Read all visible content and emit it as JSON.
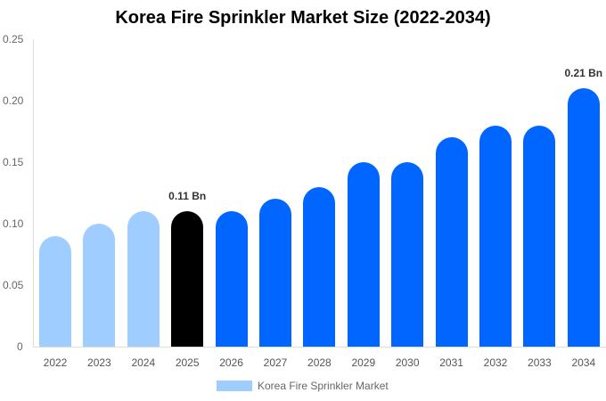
{
  "chart_data": {
    "type": "bar",
    "title": "Korea Fire Sprinkler Market Size (2022-2034)",
    "xlabel": "",
    "ylabel": "",
    "ylim": [
      0,
      0.25
    ],
    "yticks": [
      "0",
      "0.05",
      "0.10",
      "0.15",
      "0.20",
      "0.25"
    ],
    "categories": [
      "2022",
      "2023",
      "2024",
      "2025",
      "2026",
      "2027",
      "2028",
      "2029",
      "2030",
      "2031",
      "2032",
      "2033",
      "2034"
    ],
    "series": [
      {
        "name": "Korea Fire Sprinkler Market",
        "values": [
          0.09,
          0.1,
          0.11,
          0.11,
          0.11,
          0.12,
          0.13,
          0.15,
          0.15,
          0.17,
          0.18,
          0.18,
          0.21
        ]
      }
    ],
    "bar_colors": [
      "#9fcdff",
      "#9fcdff",
      "#9fcdff",
      "#000000",
      "#0066ff",
      "#0066ff",
      "#0066ff",
      "#0066ff",
      "#0066ff",
      "#0066ff",
      "#0066ff",
      "#0066ff",
      "#0066ff"
    ],
    "annotations": [
      {
        "category": "2025",
        "text": "0.11 Bn"
      },
      {
        "category": "2034",
        "text": "0.21 Bn"
      }
    ],
    "legend_position": "bottom",
    "grid": false
  }
}
